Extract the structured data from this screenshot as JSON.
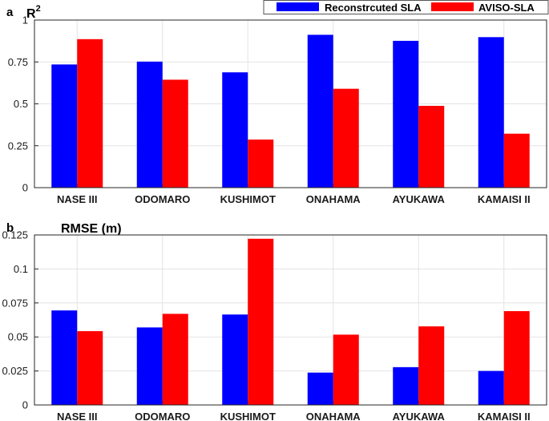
{
  "legend": {
    "series_a": "Reconstrcuted SLA",
    "series_b": "AVISO-SLA"
  },
  "colors": {
    "series_a": "#0000ff",
    "series_b": "#ff0000",
    "grid": "#e3e3e3",
    "axis": "#262626"
  },
  "chart_data": [
    {
      "type": "bar",
      "panel_label": "a",
      "title": "R",
      "title_superscript": "2",
      "categories": [
        "NASE III",
        "ODOMARO",
        "KUSHIMOT",
        "ONAHAMA",
        "AYUKAWA",
        "KAMAISI II"
      ],
      "series": [
        {
          "name": "Reconstrcuted SLA",
          "values": [
            0.735,
            0.752,
            0.688,
            0.912,
            0.876,
            0.898
          ]
        },
        {
          "name": "AVISO-SLA",
          "values": [
            0.886,
            0.644,
            0.287,
            0.59,
            0.488,
            0.322
          ]
        }
      ],
      "ylim": [
        0,
        1
      ],
      "yticks": [
        0,
        0.25,
        0.5,
        0.75,
        1
      ],
      "ytick_labels": [
        "0",
        "0.25",
        "0.5",
        "0.75",
        "1"
      ],
      "grid": true
    },
    {
      "type": "bar",
      "panel_label": "b",
      "title": "RMSE (m)",
      "title_superscript": "",
      "categories": [
        "NASE III",
        "ODOMARO",
        "KUSHIMOT",
        "ONAHAMA",
        "AYUKAWA",
        "KAMAISI II"
      ],
      "series": [
        {
          "name": "Reconstrcuted SLA",
          "values": [
            0.0695,
            0.057,
            0.0665,
            0.0238,
            0.0278,
            0.025
          ]
        },
        {
          "name": "AVISO-SLA",
          "values": [
            0.0543,
            0.067,
            0.1222,
            0.0517,
            0.0578,
            0.069
          ]
        }
      ],
      "ylim": [
        0,
        0.125
      ],
      "yticks": [
        0,
        0.025,
        0.05,
        0.075,
        0.1,
        0.125
      ],
      "ytick_labels": [
        "0",
        "0.025",
        "0.05",
        "0.075",
        "0.1",
        "0.125"
      ],
      "grid": true
    }
  ]
}
